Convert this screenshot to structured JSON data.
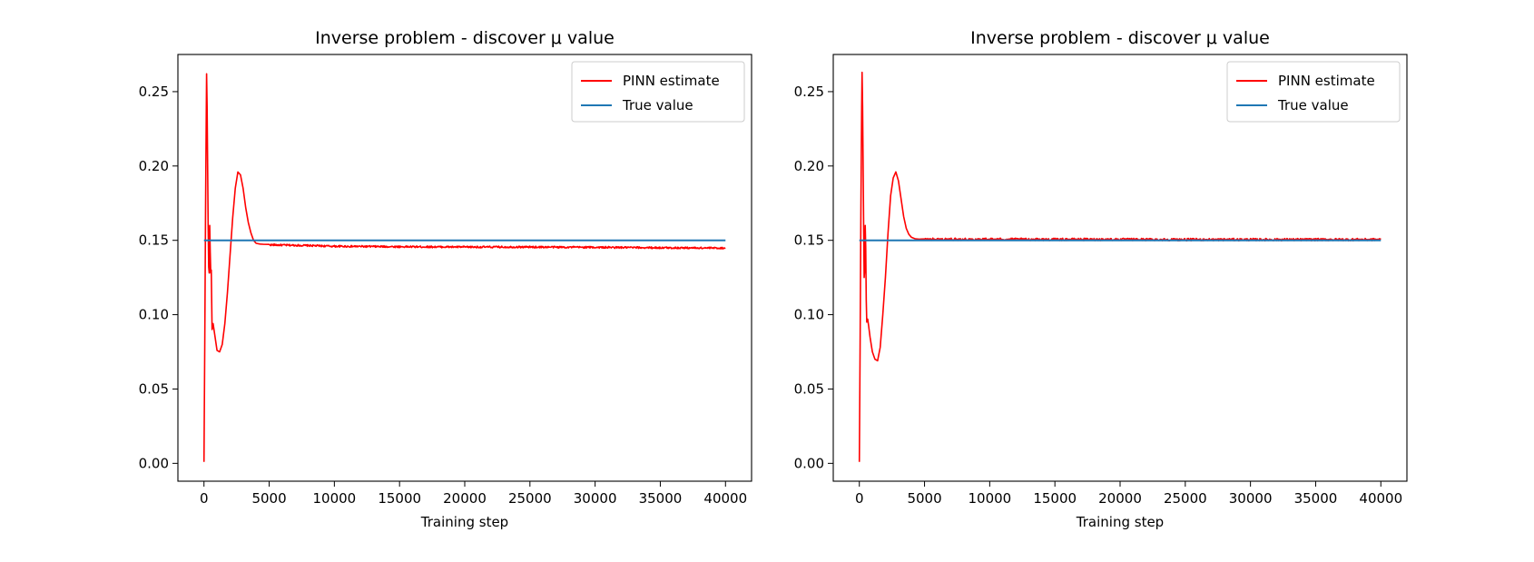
{
  "chart_data": [
    {
      "type": "line",
      "title": "Inverse problem - discover μ value",
      "xlabel": "Training step",
      "ylabel": "",
      "xlim": [
        -2000,
        42000
      ],
      "ylim": [
        -0.012,
        0.275
      ],
      "xticks": [
        0,
        5000,
        10000,
        15000,
        20000,
        25000,
        30000,
        35000,
        40000
      ],
      "xtick_labels": [
        "0",
        "5000",
        "10000",
        "15000",
        "20000",
        "25000",
        "30000",
        "35000",
        "40000"
      ],
      "yticks": [
        0.0,
        0.05,
        0.1,
        0.15,
        0.2,
        0.25
      ],
      "ytick_labels": [
        "0.00",
        "0.05",
        "0.10",
        "0.15",
        "0.20",
        "0.25"
      ],
      "grid": false,
      "legend": "top-right",
      "series": [
        {
          "name": "PINN estimate",
          "color": "#ff0000",
          "x": [
            0,
            60,
            120,
            180,
            200,
            240,
            280,
            320,
            360,
            400,
            440,
            480,
            520,
            560,
            620,
            700,
            800,
            1000,
            1200,
            1400,
            1600,
            1800,
            2000,
            2200,
            2400,
            2600,
            2800,
            3000,
            3200,
            3400,
            3600,
            3800,
            4000,
            4300,
            4600,
            5000,
            6000,
            8000,
            10000,
            15000,
            20000,
            25000,
            30000,
            35000,
            40000
          ],
          "y": [
            0.001,
            0.08,
            0.17,
            0.24,
            0.262,
            0.24,
            0.2,
            0.16,
            0.132,
            0.128,
            0.16,
            0.142,
            0.128,
            0.13,
            0.09,
            0.094,
            0.088,
            0.076,
            0.075,
            0.08,
            0.094,
            0.115,
            0.14,
            0.165,
            0.185,
            0.196,
            0.194,
            0.185,
            0.172,
            0.162,
            0.155,
            0.15,
            0.148,
            0.1475,
            0.1473,
            0.147,
            0.1468,
            0.1465,
            0.146,
            0.1457,
            0.1455,
            0.1455,
            0.1453,
            0.145,
            0.1448
          ],
          "noise": 0.0006
        },
        {
          "name": "True value",
          "color": "#1f77b4",
          "x": [
            0,
            40000
          ],
          "y": [
            0.15,
            0.15
          ]
        }
      ]
    },
    {
      "type": "line",
      "title": "Inverse problem - discover μ value",
      "xlabel": "Training step",
      "ylabel": "",
      "xlim": [
        -2000,
        42000
      ],
      "ylim": [
        -0.012,
        0.275
      ],
      "xticks": [
        0,
        5000,
        10000,
        15000,
        20000,
        25000,
        30000,
        35000,
        40000
      ],
      "xtick_labels": [
        "0",
        "5000",
        "10000",
        "15000",
        "20000",
        "25000",
        "30000",
        "35000",
        "40000"
      ],
      "yticks": [
        0.0,
        0.05,
        0.1,
        0.15,
        0.2,
        0.25
      ],
      "ytick_labels": [
        "0.00",
        "0.05",
        "0.10",
        "0.15",
        "0.20",
        "0.25"
      ],
      "grid": false,
      "legend": "top-right",
      "series": [
        {
          "name": "PINN estimate",
          "color": "#ff0000",
          "x": [
            0,
            60,
            120,
            180,
            210,
            250,
            290,
            330,
            370,
            410,
            450,
            490,
            530,
            570,
            640,
            720,
            820,
            1000,
            1200,
            1400,
            1600,
            1800,
            2000,
            2200,
            2400,
            2600,
            2800,
            3000,
            3200,
            3400,
            3600,
            3800,
            4000,
            4300,
            4600,
            5000,
            6000,
            8000,
            10000,
            15000,
            20000,
            25000,
            30000,
            35000,
            40000
          ],
          "y": [
            0.001,
            0.08,
            0.17,
            0.24,
            0.263,
            0.24,
            0.2,
            0.16,
            0.125,
            0.13,
            0.16,
            0.145,
            0.11,
            0.095,
            0.097,
            0.092,
            0.085,
            0.075,
            0.07,
            0.069,
            0.078,
            0.1,
            0.125,
            0.155,
            0.18,
            0.192,
            0.196,
            0.19,
            0.178,
            0.166,
            0.158,
            0.154,
            0.152,
            0.151,
            0.1508,
            0.1507,
            0.1507,
            0.1507,
            0.1507,
            0.1506,
            0.1506,
            0.1505,
            0.1505,
            0.1505,
            0.1505
          ],
          "noise": 0.0008
        },
        {
          "name": "True value",
          "color": "#1f77b4",
          "x": [
            0,
            40000
          ],
          "y": [
            0.15,
            0.15
          ]
        }
      ]
    }
  ]
}
